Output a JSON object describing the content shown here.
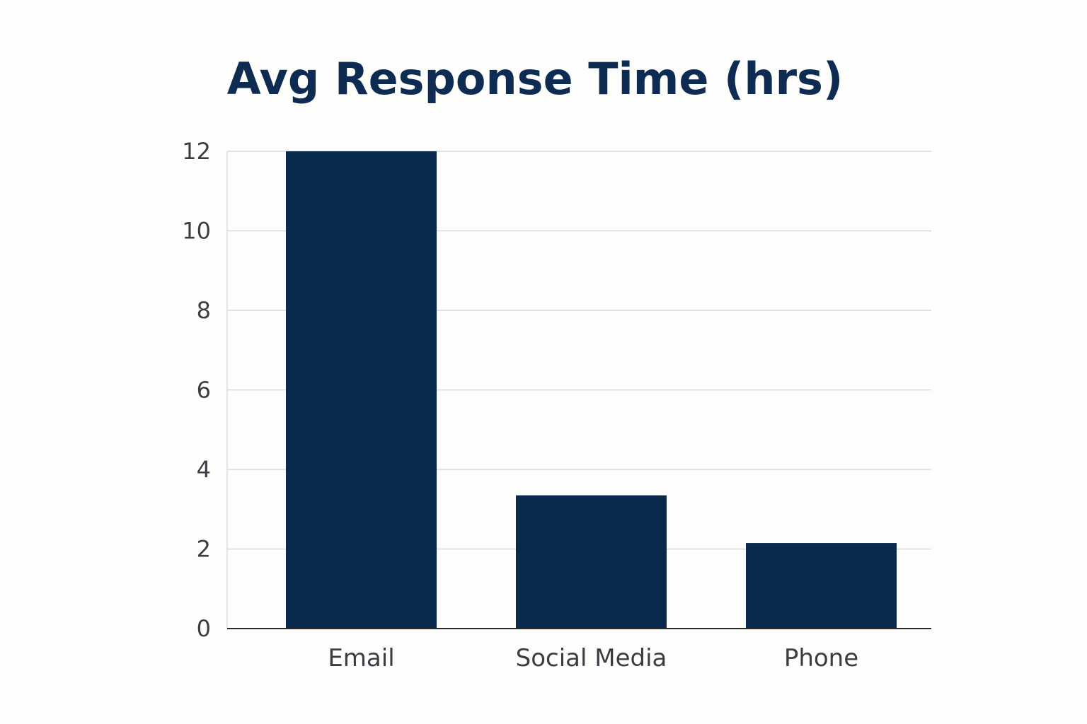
{
  "chart_data": {
    "type": "bar",
    "title": "Avg Response Time (hrs)",
    "categories": [
      "Email",
      "Social Media",
      "Phone"
    ],
    "values": [
      12,
      3.35,
      2.15
    ],
    "ylim": [
      0,
      12
    ],
    "yticks": [
      0,
      2,
      4,
      6,
      8,
      10,
      12
    ],
    "grid": true,
    "legend": "none"
  },
  "colors": {
    "bar": "#0a2a4d",
    "title": "#0e2c52",
    "grid": "#d9dade",
    "axis": "#2b2b2b",
    "text": "#3c3c44",
    "background": "#fdfdfc"
  }
}
